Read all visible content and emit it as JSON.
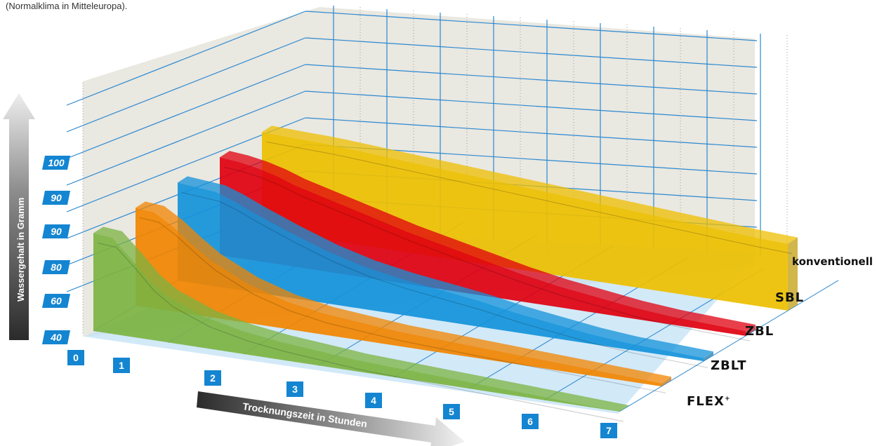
{
  "caption": "(Normalklima in Mitteleuropa).",
  "chart_data": {
    "type": "area",
    "ylabel": "Wassergehalt in Gramm",
    "xlabel": "Trocknungszeit in Stunden",
    "y_tick_labels": [
      "40",
      "60",
      "80",
      "90",
      "90",
      "100"
    ],
    "x_tick_labels": [
      "0",
      "1",
      "2",
      "3",
      "4",
      "5",
      "6",
      "7"
    ],
    "x": [
      0,
      0.25,
      0.5,
      0.75,
      1,
      1.5,
      2,
      2.5,
      3,
      3.5,
      4,
      4.5,
      5,
      5.5,
      6,
      6.5,
      7
    ],
    "series": [
      {
        "name": "FLEX+",
        "color": "#7cb342",
        "values": [
          100,
          99,
          88,
          76,
          68,
          59,
          54,
          51,
          49,
          47,
          46,
          45,
          44,
          43,
          42,
          41,
          40
        ]
      },
      {
        "name": "ZBLT",
        "color": "#f18400",
        "values": [
          100,
          99,
          92,
          83,
          75,
          64,
          57,
          53,
          51,
          49,
          48,
          47,
          46,
          45,
          44,
          43,
          42
        ]
      },
      {
        "name": "ZBL",
        "color": "#1392da",
        "values": [
          100,
          99,
          98,
          94,
          89,
          80,
          72,
          66,
          62,
          59,
          56,
          52,
          49,
          46,
          44,
          43,
          42
        ]
      },
      {
        "name": "SBL",
        "color": "#e0000f",
        "values": [
          100,
          99,
          97,
          94,
          90,
          84,
          78,
          72,
          67,
          62,
          57,
          53,
          50,
          47,
          45,
          44,
          43
        ]
      },
      {
        "name": "konventionell",
        "color": "#edbf00",
        "values": [
          100,
          99.7,
          99.3,
          99,
          98.5,
          97,
          95.5,
          94,
          92.5,
          91,
          89.5,
          88,
          86.5,
          85,
          83.5,
          82,
          81
        ]
      }
    ],
    "series_labels": {
      "konventionell": "konventionell",
      "SBL": "SBL",
      "ZBL": "ZBL",
      "ZBLT": "ZBLT",
      "FLEX+": "FLEX"
    },
    "grid": true,
    "three_d": true
  }
}
